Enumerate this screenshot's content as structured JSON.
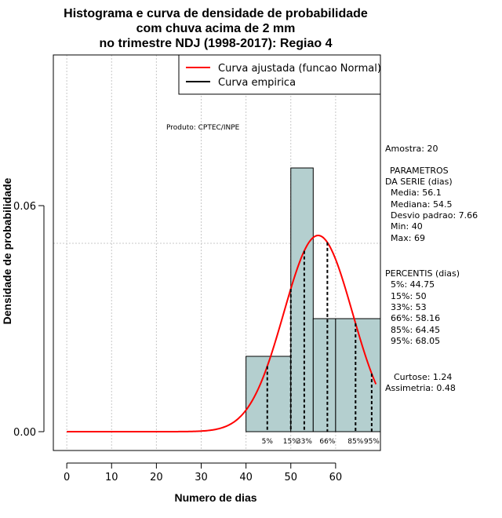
{
  "chart_data": {
    "type": "bar",
    "title_lines": [
      "Histograma e curva de densidade de probabilidade",
      "com chuva acima de 2 mm",
      "no trimestre NDJ (1998-2017): Regiao 4"
    ],
    "xlabel": "Numero de dias",
    "ylabel": "Densidade de probabilidade",
    "xlim": [
      -3,
      70
    ],
    "ylim": [
      -0.005,
      0.1
    ],
    "x_ticks": [
      0,
      10,
      20,
      30,
      40,
      50,
      60
    ],
    "y_ticks": [
      0.0,
      0.06
    ],
    "y_tick_labels": [
      "0.00",
      "0.06"
    ],
    "y_gridlines": [
      0.05,
      0.1
    ],
    "x_gridlines": [
      0,
      10,
      20,
      30,
      40,
      50,
      60
    ],
    "bins": [
      {
        "start": 40,
        "end": 50,
        "density": 0.02
      },
      {
        "start": 50,
        "end": 55,
        "density": 0.07
      },
      {
        "start": 55,
        "end": 60,
        "density": 0.03
      },
      {
        "start": 60,
        "end": 70,
        "density": 0.03
      }
    ],
    "normal_curve": {
      "mean": 56.1,
      "sd": 7.66,
      "x_range": [
        0,
        69
      ]
    },
    "percentiles": [
      {
        "label": "5%",
        "value": 44.75
      },
      {
        "label": "15%",
        "value": 50
      },
      {
        "label": "33%",
        "value": 53
      },
      {
        "label": "66%",
        "value": 58.16
      },
      {
        "label": "85%",
        "value": 64.45
      },
      {
        "label": "95%",
        "value": 68.05
      }
    ],
    "legend": [
      {
        "label": "Curva ajustada (funcao Normal)",
        "color": "#ff0000"
      },
      {
        "label": "Curva empirica",
        "color": "#000000"
      }
    ],
    "annotation": "Produto: CPTEC/INPE",
    "bar_color": "#b4cfcf",
    "curve_color": "#ff0000"
  },
  "stats": {
    "amostra": "Amostra: 20",
    "param_title_1": "PARAMETROS",
    "param_title_2": "DA SERIE (dias)",
    "media": "Media: 56.1",
    "mediana": "Mediana: 54.5",
    "desvio": "Desvio padrao: 7.66",
    "min": "Min: 40",
    "max": "Max: 69",
    "percentis_title": "PERCENTIS (dias)",
    "p5": "5%: 44.75",
    "p15": "15%: 50",
    "p33": "33%: 53",
    "p66": "66%: 58.16",
    "p85": "85%: 64.45",
    "p95": "95%: 68.05",
    "curtose": "Curtose: 1.24",
    "assimetria": "Assimetria: 0.48"
  }
}
